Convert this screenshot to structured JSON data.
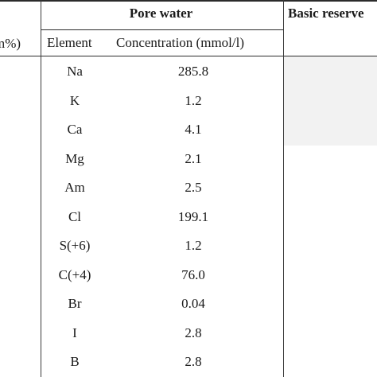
{
  "table": {
    "header": {
      "pore_water": "Pore water",
      "basic_reserve": "Basic reserve",
      "left_unit": "m%)",
      "element": "Element",
      "concentration": "Concentration (mmol/l)"
    },
    "rows": [
      {
        "element": "Na",
        "value": "285.8"
      },
      {
        "element": "K",
        "value": "1.2"
      },
      {
        "element": "Ca",
        "value": "4.1"
      },
      {
        "element": "Mg",
        "value": "2.1"
      },
      {
        "element": "Am",
        "value": "2.5"
      },
      {
        "element": "Cl",
        "value": "199.1"
      },
      {
        "element": "S(+6)",
        "value": "1.2"
      },
      {
        "element": "C(+4)",
        "value": "76.0"
      },
      {
        "element": "Br",
        "value": "0.04"
      },
      {
        "element": "I",
        "value": "2.8"
      },
      {
        "element": "B",
        "value": "2.8"
      }
    ]
  }
}
